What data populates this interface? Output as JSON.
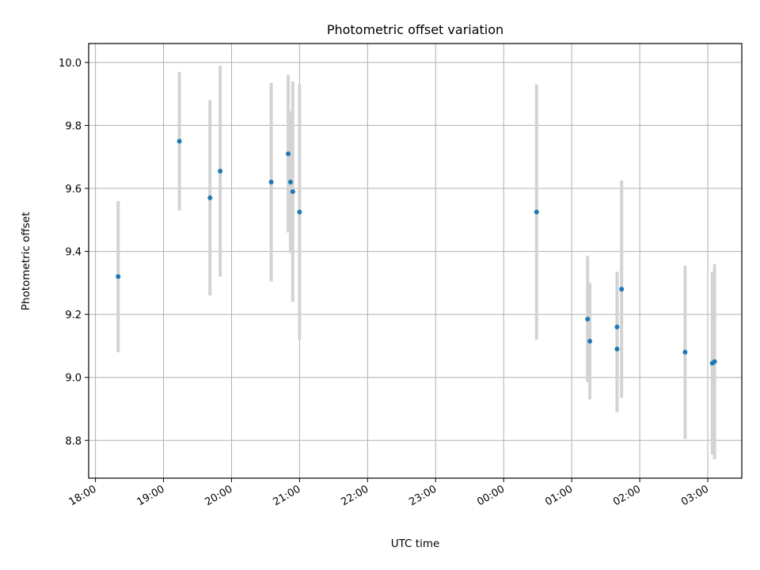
{
  "chart_data": {
    "type": "scatter",
    "title": "Photometric offset variation",
    "xlabel": "UTC time",
    "ylabel": "Photometric offset",
    "x_axis_type": "time",
    "x_start": "18:00",
    "xlim": [
      "17:54",
      "03:30"
    ],
    "ylim": [
      8.68,
      10.06
    ],
    "y_ticks": [
      8.8,
      9.0,
      9.2,
      9.4,
      9.6,
      9.8,
      10.0
    ],
    "x_ticks": [
      "18:00",
      "19:00",
      "20:00",
      "21:00",
      "22:00",
      "23:00",
      "00:00",
      "01:00",
      "02:00",
      "03:00"
    ],
    "grid": true,
    "marker_color": "#1f77b4",
    "errorbar_color": "#d3d3d3",
    "points": [
      {
        "x": "18:20",
        "y": 9.32,
        "err": 0.24
      },
      {
        "x": "19:14",
        "y": 9.75,
        "err": 0.22
      },
      {
        "x": "19:41",
        "y": 9.57,
        "err": 0.31
      },
      {
        "x": "19:50",
        "y": 9.655,
        "err": 0.335
      },
      {
        "x": "20:35",
        "y": 9.62,
        "err": 0.315
      },
      {
        "x": "20:50",
        "y": 9.71,
        "err": 0.25
      },
      {
        "x": "20:52",
        "y": 9.62,
        "err": 0.225
      },
      {
        "x": "20:54",
        "y": 9.59,
        "err": 0.35
      },
      {
        "x": "21:00",
        "y": 9.525,
        "err": 0.405
      },
      {
        "x": "00:29",
        "y": 9.525,
        "err": 0.405
      },
      {
        "x": "01:14",
        "y": 9.185,
        "err": 0.2
      },
      {
        "x": "01:16",
        "y": 9.115,
        "err": 0.185
      },
      {
        "x": "01:40",
        "y": 9.16,
        "err": 0.175
      },
      {
        "x": "01:40",
        "y": 9.09,
        "err": 0.2
      },
      {
        "x": "01:44",
        "y": 9.28,
        "err": 0.345
      },
      {
        "x": "02:40",
        "y": 9.08,
        "err": 0.275
      },
      {
        "x": "03:04",
        "y": 9.045,
        "err": 0.29
      },
      {
        "x": "03:06",
        "y": 9.05,
        "err": 0.31
      }
    ]
  }
}
